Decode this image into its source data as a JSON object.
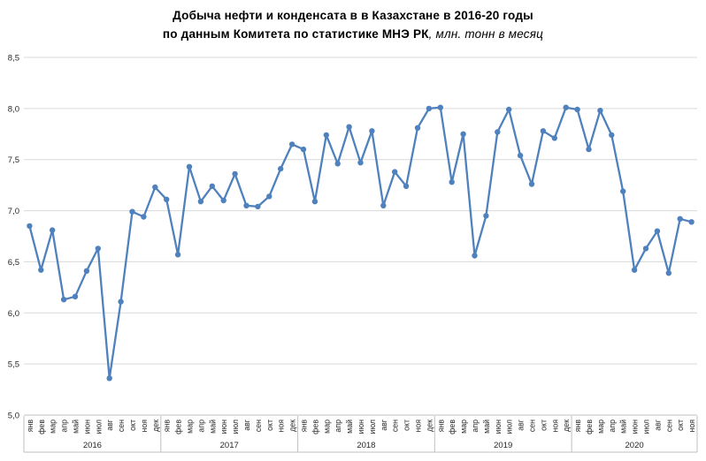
{
  "chart_data": {
    "type": "line",
    "title_lines": {
      "line1": "Добыча нефти и конденсата в в Казахстане в 2016-20 годы",
      "line2_bold": "по данным Комитета по статистике МНЭ РК",
      "line2_italic": ", млн. тонн в месяц"
    },
    "title": "Добыча нефти и конденсата в в Казахстане в 2016-20 годы по данным Комитета по статистике МНЭ РК, млн. тонн в месяц",
    "ylabel": "млн. тонн в месяц",
    "ylim": [
      5.0,
      8.5
    ],
    "ytick_step": 0.5,
    "ytick_labels": [
      "5,0",
      "5,5",
      "6,0",
      "6,5",
      "7,0",
      "7,5",
      "8,0",
      "8,5"
    ],
    "grid": true,
    "legend_position": "none",
    "line_color": "#4f81bd",
    "grid_color": "#d9d9d9",
    "axis_line_color": "#bfbfbf",
    "label_color": "#262626",
    "months": [
      "янв",
      "фев",
      "мар",
      "апр",
      "май",
      "июн",
      "июл",
      "авг",
      "сен",
      "окт",
      "ноя",
      "дек"
    ],
    "years": [
      {
        "label": "2016",
        "values": [
          6.85,
          6.42,
          6.81,
          6.13,
          6.16,
          6.41,
          6.63,
          5.36,
          6.11,
          6.99,
          6.94,
          7.23
        ]
      },
      {
        "label": "2017",
        "values": [
          7.11,
          6.57,
          7.43,
          7.09,
          7.24,
          7.1,
          7.36,
          7.05,
          7.04,
          7.14,
          7.41,
          7.65
        ]
      },
      {
        "label": "2018",
        "values": [
          7.6,
          7.09,
          7.74,
          7.46,
          7.82,
          7.47,
          7.78,
          7.05,
          7.38,
          7.24,
          7.81,
          8.0
        ]
      },
      {
        "label": "2019",
        "values": [
          8.01,
          7.28,
          7.75,
          6.56,
          6.95,
          7.77,
          7.99,
          7.54,
          7.26,
          7.78,
          7.71,
          8.01
        ]
      },
      {
        "label": "2020",
        "values": [
          7.99,
          7.6,
          7.98,
          7.74,
          7.19,
          6.42,
          6.63,
          6.8,
          6.39,
          6.92,
          6.89
        ]
      }
    ]
  }
}
